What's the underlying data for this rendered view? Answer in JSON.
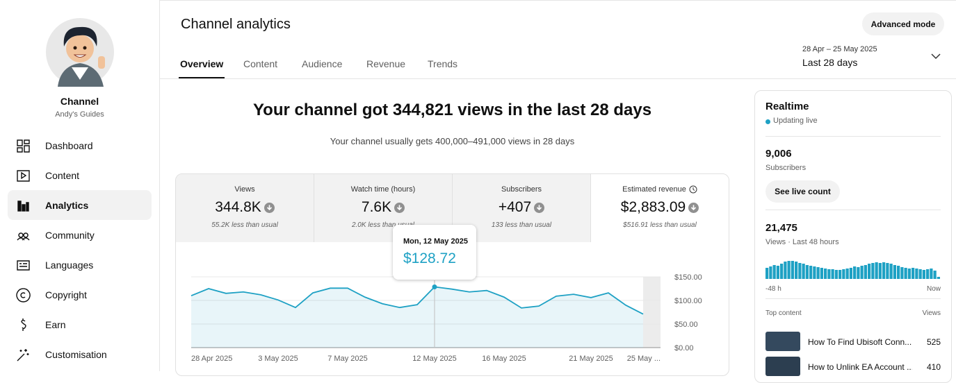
{
  "sidebar": {
    "channel_label": "Channel",
    "channel_name": "Andy's Guides",
    "nav": [
      "Dashboard",
      "Content",
      "Analytics",
      "Community",
      "Languages",
      "Copyright",
      "Earn",
      "Customisation"
    ],
    "active": "Analytics"
  },
  "header": {
    "title": "Channel analytics",
    "tabs": [
      "Overview",
      "Content",
      "Audience",
      "Revenue",
      "Trends"
    ],
    "active_tab": "Overview",
    "advanced_button": "Advanced mode",
    "date_range": "28 Apr – 25 May 2025",
    "period": "Last 28 days"
  },
  "summary": {
    "headline": "Your channel got 344,821 views in the last 28 days",
    "subtext": "Your channel usually gets 400,000–491,000 views in 28 days"
  },
  "metrics": [
    {
      "label": "Views",
      "value": "344.8K",
      "note": "55.2K less than usual"
    },
    {
      "label": "Watch time (hours)",
      "value": "7.6K",
      "note": "2.0K less than usual"
    },
    {
      "label": "Subscribers",
      "value": "+407",
      "note": "133 less than usual"
    },
    {
      "label": "Estimated revenue",
      "value": "$2,883.09",
      "note": "$516.91 less than usual"
    }
  ],
  "chart_data": {
    "type": "line",
    "color": "#1ea1c4",
    "categories": [
      "28 Apr 2025",
      null,
      null,
      null,
      null,
      "3 May 2025",
      null,
      null,
      null,
      "7 May 2025",
      null,
      null,
      null,
      null,
      "12 May 2025",
      null,
      null,
      null,
      "16 May 2025",
      null,
      null,
      null,
      null,
      "21 May 2025",
      null,
      null,
      null,
      "25 May ..."
    ],
    "values": [
      110,
      125,
      115,
      118,
      112,
      101,
      85,
      116,
      126,
      126,
      107,
      93,
      85,
      91,
      128.72,
      124,
      118,
      121,
      107,
      84,
      88,
      109,
      113,
      106,
      116,
      90,
      71,
      null
    ],
    "ylim": [
      0,
      150
    ],
    "yticks": [
      {
        "value": 0,
        "label": "$0.00"
      },
      {
        "value": 50,
        "label": "$50.00"
      },
      {
        "value": 100,
        "label": "$100.00"
      },
      {
        "value": 150,
        "label": "$150.00"
      }
    ],
    "grid": true,
    "tooltip": {
      "date": "Mon, 12 May 2025",
      "value_label": "$128.72"
    }
  },
  "realtime": {
    "title": "Realtime",
    "status": "Updating live",
    "subscribers": "9,006",
    "subscribers_label": "Subscribers",
    "button": "See live count",
    "views": "21,475",
    "views_label": "Views · Last 48 hours",
    "bar_values": [
      16,
      18,
      20,
      19,
      22,
      25,
      26,
      26,
      25,
      23,
      22,
      20,
      19,
      18,
      17,
      16,
      15,
      14,
      14,
      13,
      13,
      14,
      15,
      16,
      18,
      17,
      19,
      20,
      22,
      23,
      24,
      23,
      24,
      23,
      22,
      20,
      19,
      17,
      16,
      15,
      16,
      15,
      14,
      13,
      14,
      15,
      12,
      3
    ],
    "axis_start": "-48 h",
    "axis_end": "Now",
    "top_content_label": "Top content",
    "views_column": "Views",
    "top_content": [
      {
        "title": "How To Find Ubisoft Conn...",
        "views": "525"
      },
      {
        "title": "How to Unlink EA Account ...",
        "views": "410"
      }
    ]
  }
}
